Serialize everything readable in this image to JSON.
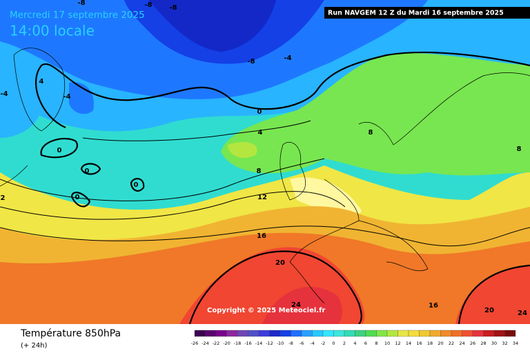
{
  "header": {
    "date": "Mercredi 17 septembre 2025",
    "time": "14:00 locale",
    "run": "Run NAVGEM 12 Z du Mardi 16 septembre 2025"
  },
  "copyright": "Copyright © 2025 Meteociel.fr",
  "footer": {
    "title": "Température 850hPa",
    "subtitle": "(+ 24h)"
  },
  "contour_labels": [
    "-8",
    "-8",
    "-8",
    "-4",
    "-8",
    "-4",
    "4",
    "-4",
    "0",
    "4",
    "8",
    "8",
    "0",
    "0",
    "0",
    "0",
    "8",
    "12",
    "16",
    "20",
    "24",
    "16",
    "20",
    "24",
    "2"
  ],
  "legend": {
    "labels": [
      -26,
      -24,
      -22,
      -20,
      -18,
      -16,
      -14,
      -12,
      -10,
      -8,
      -6,
      -4,
      -2,
      0,
      2,
      4,
      6,
      8,
      10,
      12,
      14,
      16,
      18,
      20,
      22,
      24,
      26,
      28,
      30,
      32,
      34
    ]
  }
}
